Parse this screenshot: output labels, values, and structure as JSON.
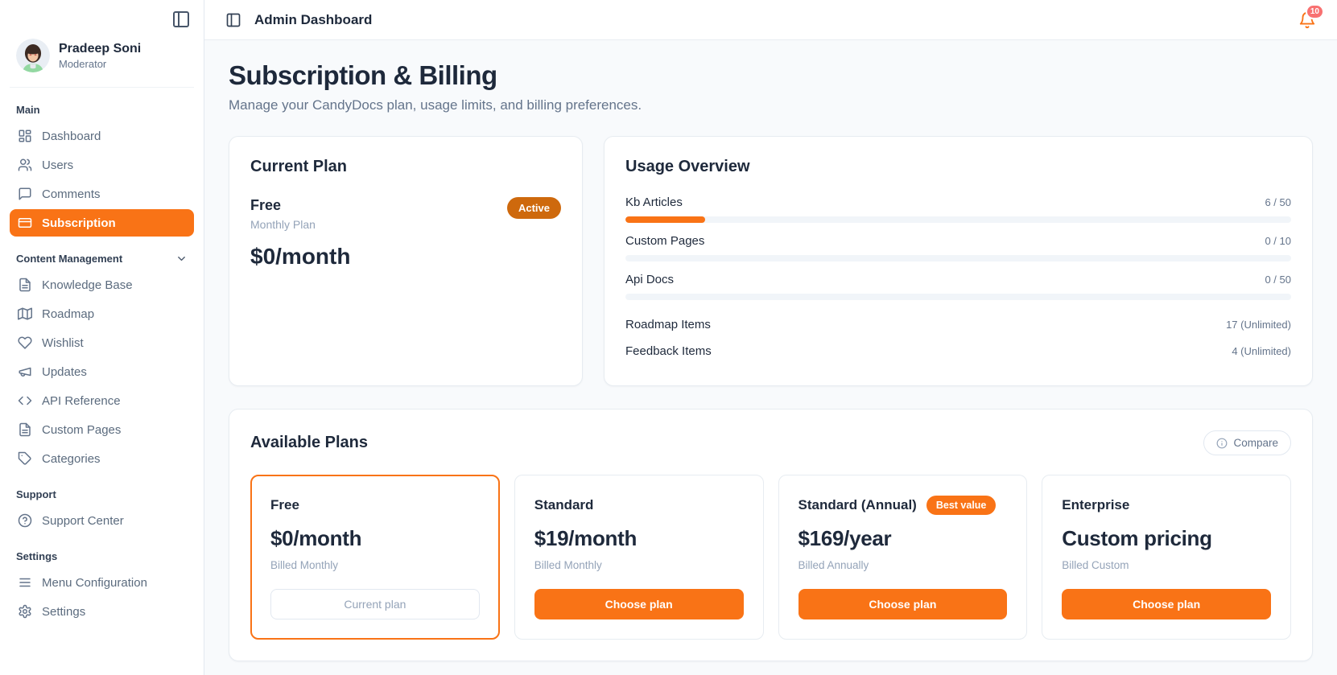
{
  "header": {
    "title": "Admin Dashboard",
    "notifications_count": "10"
  },
  "sidebar": {
    "user": {
      "name": "Pradeep Soni",
      "role": "Moderator"
    },
    "sections": [
      {
        "label": "Main",
        "items": [
          {
            "label": "Dashboard",
            "icon": "dashboard-grid-icon"
          },
          {
            "label": "Users",
            "icon": "users-icon"
          },
          {
            "label": "Comments",
            "icon": "message-square-icon"
          },
          {
            "label": "Subscription",
            "icon": "credit-card-icon",
            "active": true
          }
        ]
      },
      {
        "label": "Content Management",
        "collapsible": true,
        "items": [
          {
            "label": "Knowledge Base",
            "icon": "file-text-icon"
          },
          {
            "label": "Roadmap",
            "icon": "map-icon"
          },
          {
            "label": "Wishlist",
            "icon": "heart-icon"
          },
          {
            "label": "Updates",
            "icon": "megaphone-icon"
          },
          {
            "label": "API Reference",
            "icon": "code-icon"
          },
          {
            "label": "Custom Pages",
            "icon": "file-text-icon"
          },
          {
            "label": "Categories",
            "icon": "tag-icon"
          }
        ]
      },
      {
        "label": "Support",
        "items": [
          {
            "label": "Support Center",
            "icon": "help-circle-icon"
          }
        ]
      },
      {
        "label": "Settings",
        "items": [
          {
            "label": "Menu Configuration",
            "icon": "menu-icon"
          },
          {
            "label": "Settings",
            "icon": "gear-icon"
          }
        ]
      }
    ]
  },
  "page": {
    "title": "Subscription & Billing",
    "subtitle": "Manage your CandyDocs plan, usage limits, and billing preferences."
  },
  "current_plan": {
    "title": "Current Plan",
    "plan_name": "Free",
    "plan_cycle": "Monthly Plan",
    "price": "$0/month",
    "status_badge": "Active"
  },
  "usage": {
    "title": "Usage Overview",
    "meters": [
      {
        "label": "Kb Articles",
        "value": "6 / 50",
        "used": 6,
        "limit": 50
      },
      {
        "label": "Custom Pages",
        "value": "0 / 10",
        "used": 0,
        "limit": 10
      },
      {
        "label": "Api Docs",
        "value": "0 / 50",
        "used": 0,
        "limit": 50
      }
    ],
    "stats": [
      {
        "label": "Roadmap Items",
        "value": "17 (Unlimited)"
      },
      {
        "label": "Feedback Items",
        "value": "4 (Unlimited)"
      }
    ]
  },
  "plans": {
    "title": "Available Plans",
    "compare_label": "Compare",
    "cards": [
      {
        "name": "Free",
        "price": "$0/month",
        "billing": "Billed Monthly",
        "cta": "Current plan",
        "current": true
      },
      {
        "name": "Standard",
        "price": "$19/month",
        "billing": "Billed Monthly",
        "cta": "Choose plan"
      },
      {
        "name": "Standard (Annual)",
        "badge": "Best value",
        "price": "$169/year",
        "billing": "Billed Annually",
        "cta": "Choose plan"
      },
      {
        "name": "Enterprise",
        "price": "Custom pricing",
        "billing": "Billed Custom",
        "cta": "Choose plan"
      }
    ]
  },
  "colors": {
    "accent": "#F97316",
    "active_badge": "#CE690D",
    "notification_badge": "#F87171",
    "background": "#F8FAFC"
  }
}
